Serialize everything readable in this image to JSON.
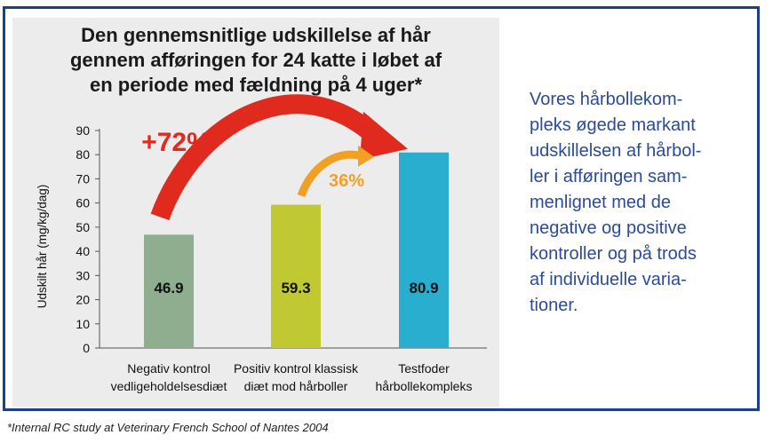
{
  "chart_data": {
    "type": "bar",
    "title_lines": [
      "Den gennemsnitlige udskillelse af hår",
      "gennem afføringen for 24 katte i løbet af",
      "en periode med fældning på 4 uger*"
    ],
    "ylabel": "Udskilt hår (mg/kg/dag)",
    "xlabel": "",
    "ylim": [
      0,
      90
    ],
    "yticks": [
      0,
      10,
      20,
      30,
      40,
      50,
      60,
      70,
      80,
      90
    ],
    "categories": [
      [
        "Negativ kontrol",
        "vedligeholdelsesdiæt"
      ],
      [
        "Positiv kontrol klassisk",
        "diæt mod hårboller"
      ],
      [
        "Testfoder",
        "hårbollekompleks"
      ]
    ],
    "values": [
      46.9,
      59.3,
      80.9
    ],
    "value_labels": [
      "46.9",
      "59.3",
      "80.9"
    ],
    "colors": [
      "#8fad8f",
      "#c0c832",
      "#2aaed0"
    ],
    "grid": false,
    "annotations": [
      {
        "text": "+72%",
        "from_category": 0,
        "to_category": 2,
        "color": "#e02a1e"
      },
      {
        "text": "36%",
        "from_category": 1,
        "to_category": 2,
        "color": "#f2a024"
      }
    ]
  },
  "side_text_lines": [
    "Vores hårbollekom-",
    "pleks øgede markant",
    "udskillelsen af hårbol-",
    "ler i afføringen sam-",
    "menlignet med de",
    "negative og positive",
    "kontroller og på trods",
    "af individuelle varia-",
    "tioner."
  ],
  "footnote": "*Internal RC study at Veterinary French School of Nantes 2004"
}
